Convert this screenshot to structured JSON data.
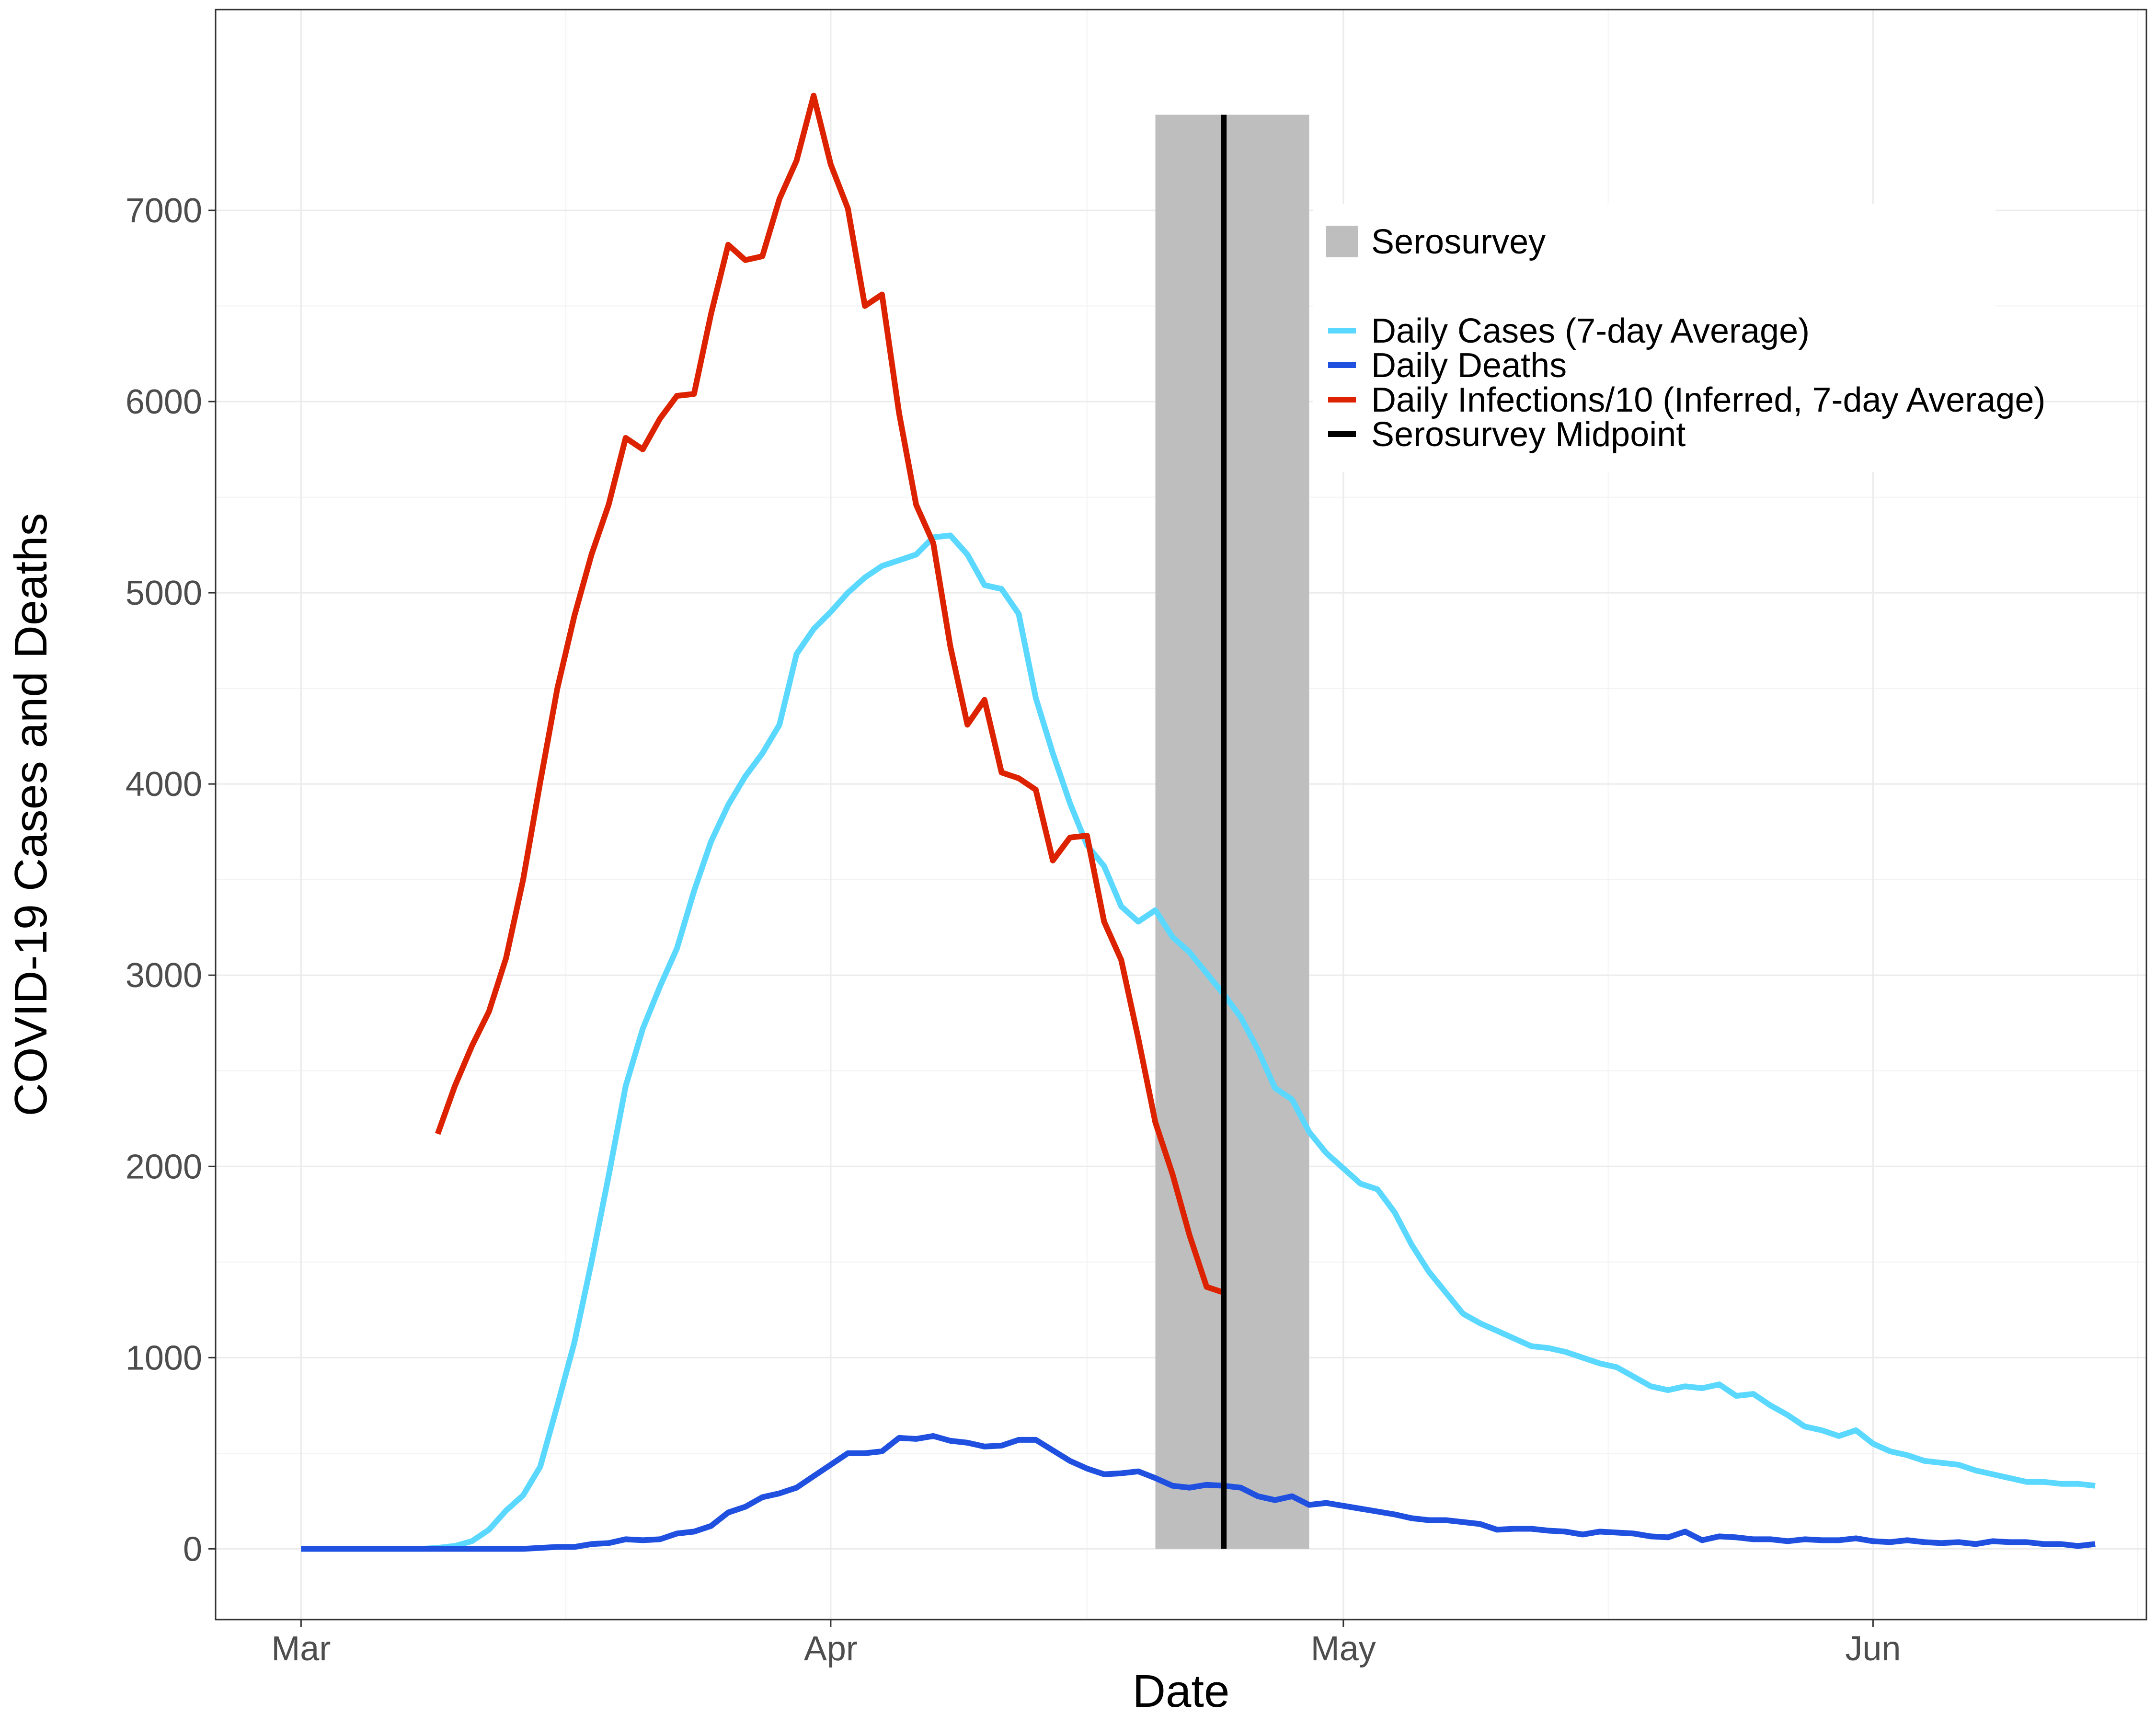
{
  "chart_data": {
    "type": "line",
    "xlabel": "Date",
    "ylabel": "COVID-19 Cases and Deaths",
    "x_ticks": [
      {
        "label": "Mar",
        "date": "2020-03-01"
      },
      {
        "label": "Apr",
        "date": "2020-04-01"
      },
      {
        "label": "May",
        "date": "2020-05-01"
      },
      {
        "label": "Jun",
        "date": "2020-06-01"
      }
    ],
    "y_ticks": [
      0,
      1000,
      2000,
      3000,
      4000,
      5000,
      6000,
      7000
    ],
    "xlim": [
      "2020-02-25",
      "2020-06-17"
    ],
    "ylim": [
      -370,
      8050
    ],
    "grid": true,
    "legend_position": "top-right",
    "serosurvey": {
      "label": "Serosurvey",
      "start": "2020-04-20",
      "end": "2020-04-29",
      "top": 7500,
      "bottom": 0,
      "color": "#bebebe"
    },
    "midpoint": {
      "label": "Serosurvey Midpoint",
      "date": "2020-04-24",
      "top": 7500,
      "bottom": 0,
      "color": "#000000"
    },
    "series": [
      {
        "name": "Daily Cases (7-day Average)",
        "color": "#5ad8ff",
        "x": [
          "2020-03-01",
          "2020-03-02",
          "2020-03-03",
          "2020-03-04",
          "2020-03-05",
          "2020-03-06",
          "2020-03-07",
          "2020-03-08",
          "2020-03-09",
          "2020-03-10",
          "2020-03-11",
          "2020-03-12",
          "2020-03-13",
          "2020-03-14",
          "2020-03-15",
          "2020-03-16",
          "2020-03-17",
          "2020-03-18",
          "2020-03-19",
          "2020-03-20",
          "2020-03-21",
          "2020-03-22",
          "2020-03-23",
          "2020-03-24",
          "2020-03-25",
          "2020-03-26",
          "2020-03-27",
          "2020-03-28",
          "2020-03-29",
          "2020-03-30",
          "2020-03-31",
          "2020-04-01",
          "2020-04-02",
          "2020-04-03",
          "2020-04-04",
          "2020-04-05",
          "2020-04-06",
          "2020-04-07",
          "2020-04-08",
          "2020-04-09",
          "2020-04-10",
          "2020-04-11",
          "2020-04-12",
          "2020-04-13",
          "2020-04-14",
          "2020-04-15",
          "2020-04-16",
          "2020-04-17",
          "2020-04-18",
          "2020-04-19",
          "2020-04-20",
          "2020-04-21",
          "2020-04-22",
          "2020-04-23",
          "2020-04-24",
          "2020-04-25",
          "2020-04-26",
          "2020-04-27",
          "2020-04-28",
          "2020-04-29",
          "2020-04-30",
          "2020-05-01",
          "2020-05-02",
          "2020-05-03",
          "2020-05-04",
          "2020-05-05",
          "2020-05-06",
          "2020-05-07",
          "2020-05-08",
          "2020-05-09",
          "2020-05-10",
          "2020-05-11",
          "2020-05-12",
          "2020-05-13",
          "2020-05-14",
          "2020-05-15",
          "2020-05-16",
          "2020-05-17",
          "2020-05-18",
          "2020-05-19",
          "2020-05-20",
          "2020-05-21",
          "2020-05-22",
          "2020-05-23",
          "2020-05-24",
          "2020-05-25",
          "2020-05-26",
          "2020-05-27",
          "2020-05-28",
          "2020-05-29",
          "2020-05-30",
          "2020-05-31",
          "2020-06-01",
          "2020-06-02",
          "2020-06-03",
          "2020-06-04",
          "2020-06-05",
          "2020-06-06",
          "2020-06-07",
          "2020-06-08",
          "2020-06-09",
          "2020-06-10",
          "2020-06-11",
          "2020-06-12",
          "2020-06-13",
          "2020-06-14"
        ],
        "y": [
          0,
          0,
          0,
          0,
          0,
          0,
          0,
          0,
          5,
          15,
          40,
          100,
          200,
          280,
          430,
          750,
          1080,
          1500,
          1950,
          2420,
          2720,
          2940,
          3140,
          3440,
          3700,
          3890,
          4040,
          4160,
          4310,
          4680,
          4810,
          4900,
          5000,
          5080,
          5140,
          5170,
          5200,
          5290,
          5300,
          5200,
          5040,
          5020,
          4890,
          4450,
          4160,
          3900,
          3680,
          3570,
          3360,
          3280,
          3340,
          3200,
          3120,
          3010,
          2900,
          2780,
          2610,
          2410,
          2350,
          2180,
          2070,
          1990,
          1910,
          1880,
          1760,
          1590,
          1450,
          1340,
          1230,
          1180,
          1140,
          1100,
          1060,
          1050,
          1030,
          1000,
          970,
          950,
          900,
          850,
          830,
          850,
          840,
          860,
          800,
          810,
          750,
          700,
          640,
          620,
          590,
          620,
          550,
          510,
          490,
          460,
          450,
          440,
          410,
          390,
          370,
          350,
          350,
          340,
          340,
          330
        ]
      },
      {
        "name": "Daily Deaths",
        "color": "#1f50e0",
        "x": [
          "2020-03-01",
          "2020-03-02",
          "2020-03-03",
          "2020-03-04",
          "2020-03-05",
          "2020-03-06",
          "2020-03-07",
          "2020-03-08",
          "2020-03-09",
          "2020-03-10",
          "2020-03-11",
          "2020-03-12",
          "2020-03-13",
          "2020-03-14",
          "2020-03-15",
          "2020-03-16",
          "2020-03-17",
          "2020-03-18",
          "2020-03-19",
          "2020-03-20",
          "2020-03-21",
          "2020-03-22",
          "2020-03-23",
          "2020-03-24",
          "2020-03-25",
          "2020-03-26",
          "2020-03-27",
          "2020-03-28",
          "2020-03-29",
          "2020-03-30",
          "2020-03-31",
          "2020-04-01",
          "2020-04-02",
          "2020-04-03",
          "2020-04-04",
          "2020-04-05",
          "2020-04-06",
          "2020-04-07",
          "2020-04-08",
          "2020-04-09",
          "2020-04-10",
          "2020-04-11",
          "2020-04-12",
          "2020-04-13",
          "2020-04-14",
          "2020-04-15",
          "2020-04-16",
          "2020-04-17",
          "2020-04-18",
          "2020-04-19",
          "2020-04-20",
          "2020-04-21",
          "2020-04-22",
          "2020-04-23",
          "2020-04-24",
          "2020-04-25",
          "2020-04-26",
          "2020-04-27",
          "2020-04-28",
          "2020-04-29",
          "2020-04-30",
          "2020-05-01",
          "2020-05-02",
          "2020-05-03",
          "2020-05-04",
          "2020-05-05",
          "2020-05-06",
          "2020-05-07",
          "2020-05-08",
          "2020-05-09",
          "2020-05-10",
          "2020-05-11",
          "2020-05-12",
          "2020-05-13",
          "2020-05-14",
          "2020-05-15",
          "2020-05-16",
          "2020-05-17",
          "2020-05-18",
          "2020-05-19",
          "2020-05-20",
          "2020-05-21",
          "2020-05-22",
          "2020-05-23",
          "2020-05-24",
          "2020-05-25",
          "2020-05-26",
          "2020-05-27",
          "2020-05-28",
          "2020-05-29",
          "2020-05-30",
          "2020-05-31",
          "2020-06-01",
          "2020-06-02",
          "2020-06-03",
          "2020-06-04",
          "2020-06-05",
          "2020-06-06",
          "2020-06-07",
          "2020-06-08",
          "2020-06-09",
          "2020-06-10",
          "2020-06-11",
          "2020-06-12",
          "2020-06-13",
          "2020-06-14"
        ],
        "y": [
          0,
          0,
          0,
          0,
          0,
          0,
          0,
          0,
          0,
          0,
          0,
          0,
          0,
          0,
          5,
          10,
          10,
          25,
          30,
          50,
          45,
          50,
          80,
          90,
          120,
          190,
          220,
          270,
          290,
          320,
          380,
          440,
          500,
          500,
          510,
          580,
          575,
          590,
          565,
          555,
          535,
          540,
          570,
          570,
          515,
          460,
          420,
          390,
          395,
          405,
          370,
          330,
          320,
          335,
          330,
          320,
          275,
          255,
          275,
          230,
          240,
          225,
          210,
          195,
          180,
          160,
          150,
          150,
          140,
          130,
          100,
          105,
          105,
          95,
          90,
          75,
          90,
          85,
          80,
          65,
          60,
          90,
          45,
          65,
          60,
          50,
          50,
          40,
          50,
          45,
          45,
          55,
          40,
          35,
          45,
          35,
          30,
          35,
          25,
          40,
          35,
          35,
          25,
          25,
          15,
          25
        ]
      },
      {
        "name": "Daily Infections/10 (Inferred, 7-day Average)",
        "color": "#dd2200",
        "x": [
          "2020-03-09",
          "2020-03-10",
          "2020-03-11",
          "2020-03-12",
          "2020-03-13",
          "2020-03-14",
          "2020-03-15",
          "2020-03-16",
          "2020-03-17",
          "2020-03-18",
          "2020-03-19",
          "2020-03-20",
          "2020-03-21",
          "2020-03-22",
          "2020-03-23",
          "2020-03-24",
          "2020-03-25",
          "2020-03-26",
          "2020-03-27",
          "2020-03-28",
          "2020-03-29",
          "2020-03-30",
          "2020-03-31",
          "2020-04-01",
          "2020-04-02",
          "2020-04-03",
          "2020-04-04",
          "2020-04-05",
          "2020-04-06",
          "2020-04-07",
          "2020-04-08",
          "2020-04-09",
          "2020-04-10",
          "2020-04-11",
          "2020-04-12",
          "2020-04-13",
          "2020-04-14",
          "2020-04-15",
          "2020-04-16",
          "2020-04-17",
          "2020-04-18",
          "2020-04-19",
          "2020-04-20",
          "2020-04-21",
          "2020-04-22",
          "2020-04-23",
          "2020-04-24"
        ],
        "y": [
          2170,
          2420,
          2630,
          2810,
          3090,
          3500,
          4010,
          4500,
          4880,
          5200,
          5460,
          5810,
          5750,
          5910,
          6030,
          6040,
          6460,
          6820,
          6740,
          6760,
          7060,
          7260,
          7600,
          7240,
          7010,
          6500,
          6560,
          5940,
          5460,
          5260,
          4720,
          4310,
          4440,
          4060,
          4030,
          3970,
          3600,
          3720,
          3730,
          3280,
          3080,
          2670,
          2230,
          1960,
          1640,
          1370,
          1340
        ]
      }
    ]
  }
}
